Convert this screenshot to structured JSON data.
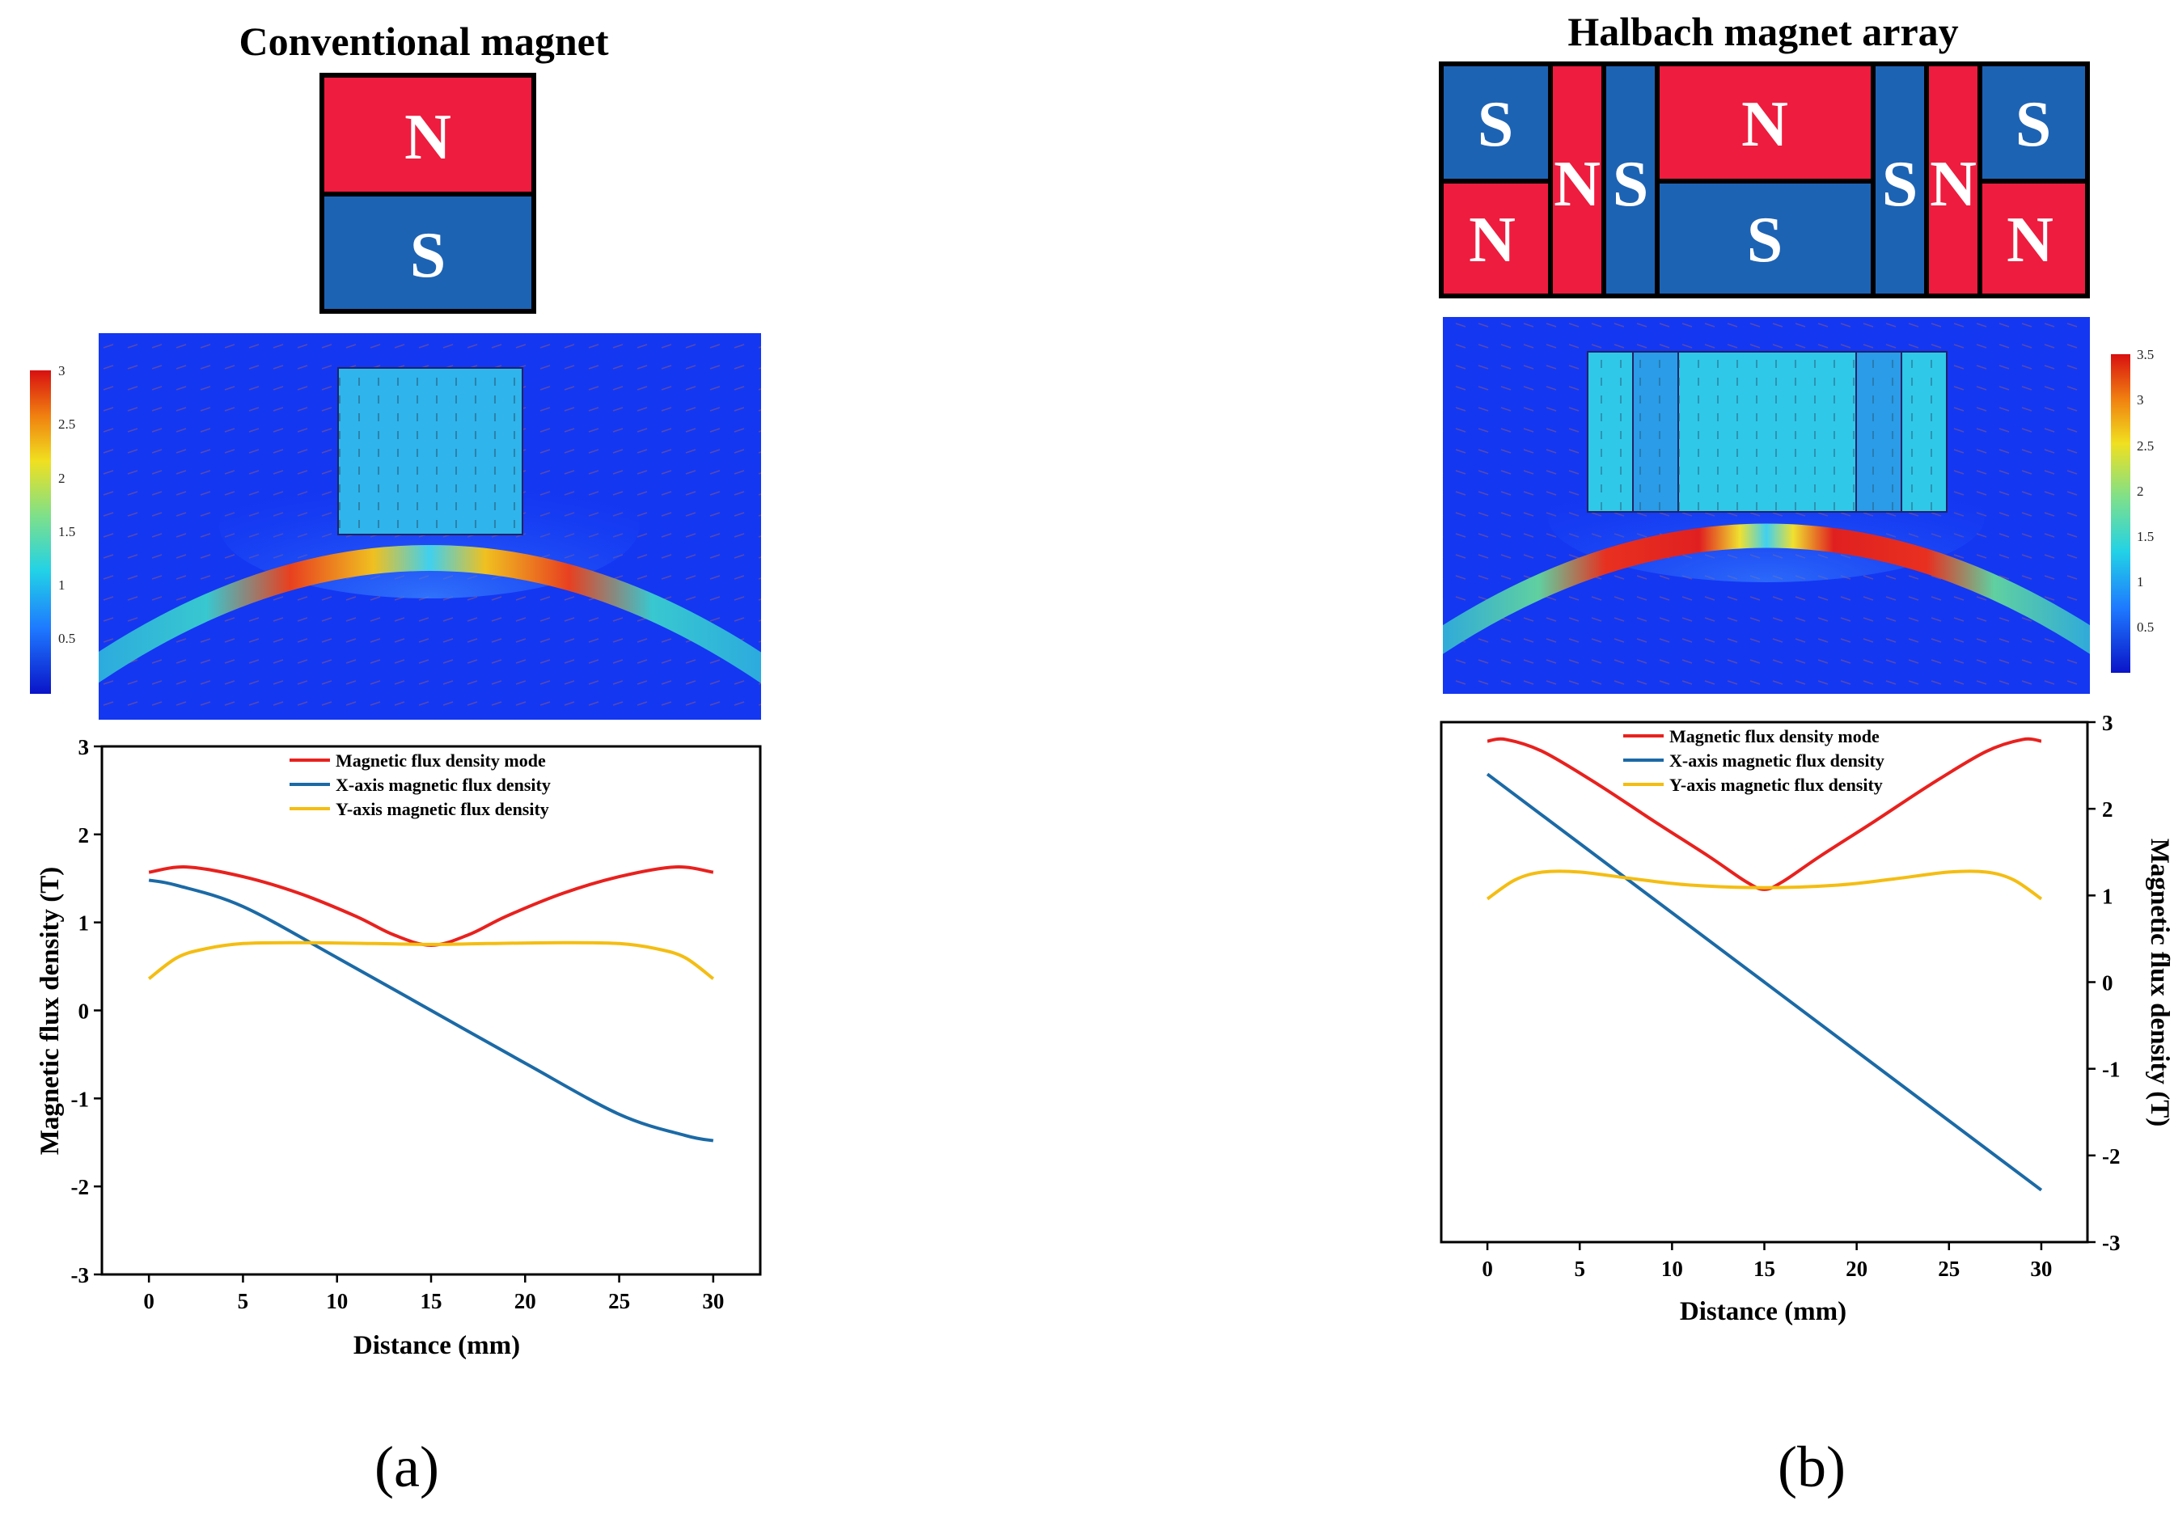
{
  "panel_a": {
    "title": "Conventional magnet",
    "magnet_poles": [
      "N",
      "S"
    ],
    "colorbar_ticks": [
      "3",
      "2.5",
      "2",
      "1.5",
      "1",
      "0.5"
    ],
    "caption": "(a)"
  },
  "panel_b": {
    "title": "Halbach magnet array",
    "magnet_blocks": [
      {
        "top": "S",
        "bottom": "N"
      },
      {
        "single": "N"
      },
      {
        "single": "S"
      },
      {
        "top": "N",
        "bottom": "S"
      },
      {
        "single": "S"
      },
      {
        "single": "N"
      },
      {
        "top": "S",
        "bottom": "N"
      }
    ],
    "colorbar_ticks": [
      "3.5",
      "3",
      "2.5",
      "2",
      "1.5",
      "1",
      "0.5"
    ],
    "caption": "(b)"
  },
  "colors": {
    "north": "#ee1c3e",
    "south": "#1d63b4",
    "field_bg": "#1437f2",
    "mode": "#e8211e",
    "x_axis": "#1b6aa6",
    "y_axis": "#f4bd12"
  },
  "chart_data": [
    {
      "type": "line",
      "panel": "a",
      "xlabel": "Distance (mm)",
      "ylabel": "Magnetic flux density (T)",
      "xlim": [
        -2.5,
        32.5
      ],
      "ylim": [
        -3,
        3
      ],
      "xticks": [
        0,
        5,
        10,
        15,
        20,
        25,
        30
      ],
      "yticks": [
        -3,
        -2,
        -1,
        0,
        1,
        2,
        3
      ],
      "legend_position": "top-center",
      "series": [
        {
          "name": "Magnetic flux density mode",
          "color": "#e8211e",
          "x": [
            0,
            2,
            5,
            8,
            11,
            13,
            15,
            17,
            19,
            22,
            25,
            28,
            30
          ],
          "y": [
            1.57,
            1.63,
            1.52,
            1.33,
            1.07,
            0.86,
            0.74,
            0.86,
            1.07,
            1.33,
            1.52,
            1.63,
            1.57
          ]
        },
        {
          "name": "X-axis magnetic flux density",
          "color": "#1b6aa6",
          "x": [
            0,
            1.5,
            5,
            10,
            15,
            20,
            25,
            28.5,
            30
          ],
          "y": [
            1.48,
            1.42,
            1.18,
            0.6,
            0.0,
            -0.6,
            -1.18,
            -1.42,
            -1.48
          ]
        },
        {
          "name": "Y-axis magnetic flux density",
          "color": "#f4bd12",
          "x": [
            0,
            1.5,
            3,
            5,
            8,
            12,
            15,
            18,
            22,
            25,
            27,
            28.5,
            30
          ],
          "y": [
            0.36,
            0.6,
            0.7,
            0.76,
            0.77,
            0.76,
            0.75,
            0.76,
            0.77,
            0.76,
            0.7,
            0.6,
            0.36
          ]
        }
      ]
    },
    {
      "type": "line",
      "panel": "b",
      "xlabel": "Distance (mm)",
      "ylabel": "Magnetic flux density (T)",
      "xlim": [
        -2.5,
        32.5
      ],
      "ylim": [
        -3,
        3
      ],
      "xticks": [
        0,
        5,
        10,
        15,
        20,
        25,
        30
      ],
      "yticks": [
        -3,
        -2,
        -1,
        0,
        1,
        2,
        3
      ],
      "y_axis_side": "right",
      "legend_position": "top-center",
      "series": [
        {
          "name": "Magnetic flux density mode",
          "color": "#e8211e",
          "x": [
            0,
            1,
            3,
            6,
            9,
            12,
            14,
            15,
            16,
            18,
            21,
            24,
            27,
            29,
            30
          ],
          "y": [
            2.78,
            2.8,
            2.66,
            2.28,
            1.86,
            1.45,
            1.16,
            1.07,
            1.16,
            1.45,
            1.86,
            2.28,
            2.66,
            2.8,
            2.78
          ]
        },
        {
          "name": "X-axis magnetic flux density",
          "color": "#1b6aa6",
          "x": [
            0,
            5,
            10,
            15,
            20,
            25,
            30
          ],
          "y": [
            2.4,
            1.6,
            0.8,
            0.0,
            -0.8,
            -1.6,
            -2.4
          ]
        },
        {
          "name": "Y-axis magnetic flux density",
          "color": "#f4bd12",
          "x": [
            0,
            1.5,
            3,
            5,
            8,
            11,
            15,
            19,
            22,
            25,
            27,
            28.5,
            30
          ],
          "y": [
            0.96,
            1.18,
            1.27,
            1.27,
            1.19,
            1.12,
            1.09,
            1.12,
            1.19,
            1.27,
            1.27,
            1.18,
            0.96
          ]
        }
      ]
    }
  ]
}
